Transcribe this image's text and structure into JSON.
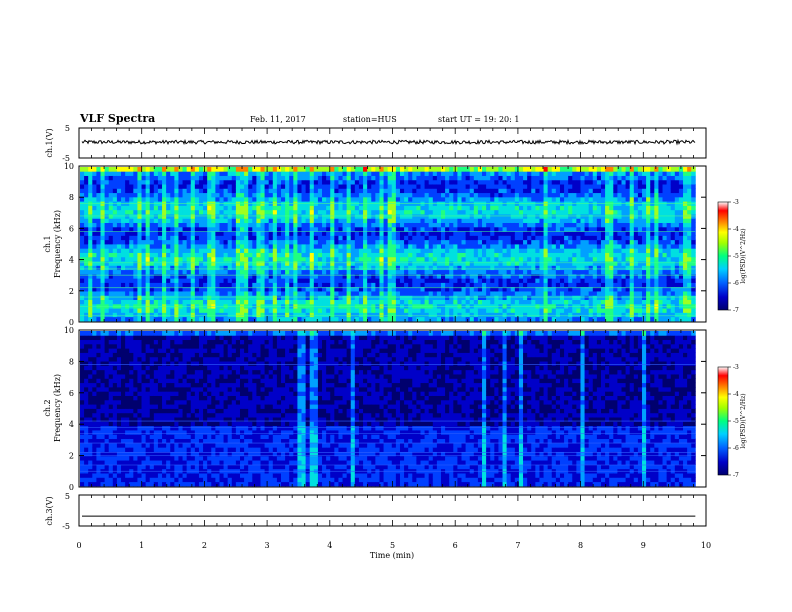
{
  "header": {
    "title": "VLF Spectra",
    "date": "Feb. 11, 2017",
    "station": "station=HUS",
    "start": "start  UT =   19: 20: 1"
  },
  "chart_data": [
    {
      "type": "line",
      "panel": "ch.1 waveform",
      "ylabel": "ch.1(V)",
      "ylim": [
        -5,
        5
      ],
      "yticks": [
        "5",
        "-5"
      ],
      "xlim": [
        0,
        10
      ],
      "description_level_V": 0.3,
      "color": "#000000"
    },
    {
      "type": "heatmap",
      "panel": "ch.1 spectrogram",
      "ylabel": "ch.1\nFrequency (kHz)",
      "ylim": [
        0,
        10
      ],
      "yticks": [
        "0",
        "2",
        "4",
        "6",
        "8",
        "10"
      ],
      "xlim": [
        0,
        9.83
      ],
      "intensity": "high",
      "colorbar": {
        "label": "log(PSD)(V^2/Hz)",
        "range": [
          -7,
          -3
        ],
        "ticks": [
          "-3",
          "-4",
          "-5",
          "-6",
          "-7"
        ]
      }
    },
    {
      "type": "heatmap",
      "panel": "ch.2 spectrogram",
      "ylabel": "ch.2\nFrequency (kHz)",
      "ylim": [
        0,
        10
      ],
      "yticks": [
        "0",
        "2",
        "4",
        "6",
        "8",
        "10"
      ],
      "xlim": [
        0,
        9.83
      ],
      "intensity": "low",
      "colorbar": {
        "label": "log(PSD)(V^2/Hz)",
        "range": [
          -7,
          -3
        ],
        "ticks": [
          "-3",
          "-4",
          "-5",
          "-6",
          "-7"
        ]
      }
    },
    {
      "type": "line",
      "panel": "ch.3 waveform",
      "ylabel": "ch.3(V)",
      "ylim": [
        -5,
        5
      ],
      "yticks": [
        "5",
        "-5"
      ],
      "xlim": [
        0,
        9.83
      ],
      "description_level_V": -1.8,
      "color": "#000000"
    }
  ],
  "xaxis": {
    "label": "Time  (min)",
    "ticks": [
      "0",
      "1",
      "2",
      "3",
      "4",
      "5",
      "6",
      "7",
      "8",
      "9",
      "10"
    ],
    "range": [
      0,
      10
    ]
  },
  "colors": {
    "background": "#000050",
    "colormap": [
      "#00006e",
      "#0000c8",
      "#0040ff",
      "#00a0ff",
      "#00e0e0",
      "#20ff80",
      "#a0ff20",
      "#ffff00",
      "#ff8000",
      "#ff0000",
      "#ffffff"
    ]
  }
}
